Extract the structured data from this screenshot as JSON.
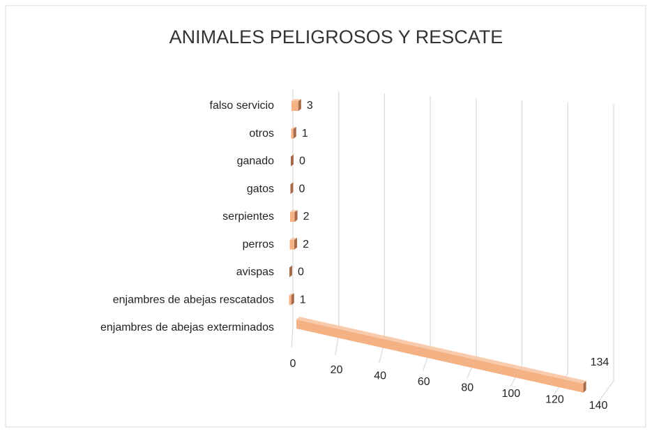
{
  "chart_data": {
    "type": "bar3d",
    "title": "ANIMALES PELIGROSOS Y RESCATE",
    "categories": [
      "enjambres de abejas exterminados",
      "enjambres de abejas rescatados",
      "avispas",
      "perros",
      "serpientes",
      "gatos",
      "ganado",
      "otros",
      "falso servicio"
    ],
    "values": [
      134,
      1,
      0,
      2,
      2,
      0,
      0,
      1,
      3
    ],
    "color": "#f4b183",
    "xlim": [
      0,
      140
    ],
    "xticks": [
      0,
      20,
      40,
      60,
      80,
      100,
      120,
      140
    ],
    "grid": true
  }
}
